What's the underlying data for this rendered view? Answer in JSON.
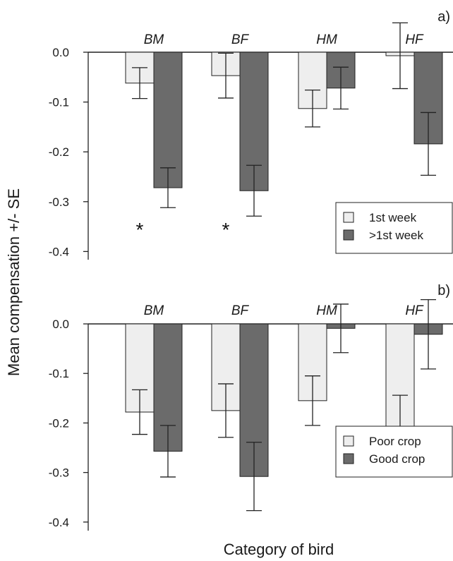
{
  "ylabel": "Mean compensation +/- SE",
  "xlabel": "Category of bird",
  "colors": {
    "light": "#eeeeee",
    "dark": "#6b6b6b",
    "stroke": "#222222"
  },
  "chart_data": [
    {
      "type": "bar",
      "panel": "a)",
      "categories": [
        "BM",
        "BF",
        "HM",
        "HF"
      ],
      "ylim": [
        -0.4,
        0.0
      ],
      "yticks": [
        "0.0",
        "-0.1",
        "-0.2",
        "-0.3",
        "-0.4"
      ],
      "legend_position": "bottom-right",
      "series": [
        {
          "name": "1st week",
          "values": [
            -0.062,
            -0.047,
            -0.113,
            -0.007
          ],
          "se": [
            0.031,
            0.045,
            0.037,
            0.066
          ]
        },
        {
          "name": ">1st week",
          "values": [
            -0.272,
            -0.278,
            -0.072,
            -0.184
          ],
          "se": [
            0.04,
            0.051,
            0.042,
            0.063
          ]
        }
      ],
      "annotations": [
        {
          "category": "BM",
          "series": "1st week",
          "text": "*"
        },
        {
          "category": "BF",
          "series": "1st week",
          "text": "*"
        }
      ]
    },
    {
      "type": "bar",
      "panel": "b)",
      "categories": [
        "BM",
        "BF",
        "HM",
        "HF"
      ],
      "ylim": [
        -0.4,
        0.0
      ],
      "yticks": [
        "0.0",
        "-0.1",
        "-0.2",
        "-0.3",
        "-0.4"
      ],
      "legend_position": "bottom-right",
      "series": [
        {
          "name": "Poor crop",
          "values": [
            -0.178,
            -0.175,
            -0.155,
            -0.222
          ],
          "se": [
            0.045,
            0.054,
            0.05,
            0.078
          ]
        },
        {
          "name": "Good crop",
          "values": [
            -0.257,
            -0.308,
            -0.009,
            -0.021
          ],
          "se": [
            0.052,
            0.069,
            0.049,
            0.07
          ]
        }
      ],
      "annotations": []
    }
  ]
}
